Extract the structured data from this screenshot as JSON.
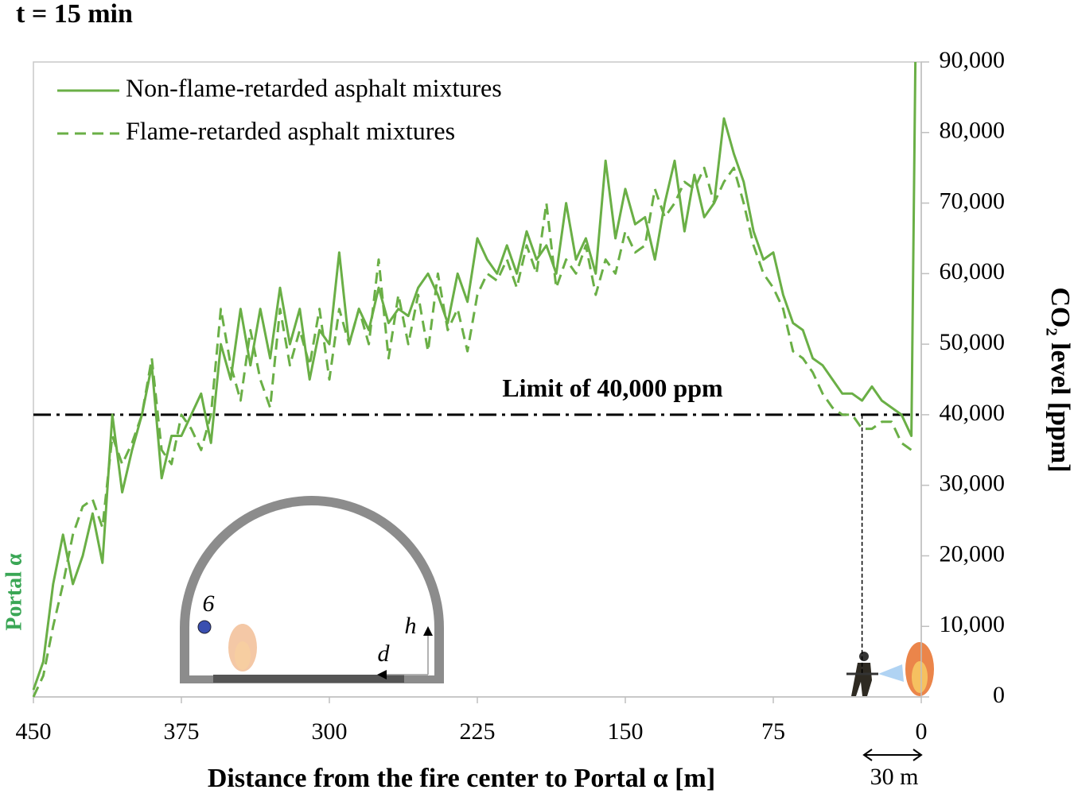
{
  "chart_data": {
    "type": "line",
    "title": "t = 15 min",
    "x_label": "Distance from the fire center to Portal α [m]",
    "y_label": "CO₂ level [ppm]",
    "xlim": [
      450,
      0
    ],
    "xticks": [
      450,
      375,
      300,
      225,
      150,
      75,
      0
    ],
    "ylim": [
      0,
      90000
    ],
    "yticks": [
      0,
      {
        "value": 10000,
        "label": "10,000"
      },
      {
        "value": 20000,
        "label": "20,000"
      },
      {
        "value": 30000,
        "label": "30,000"
      },
      {
        "value": 40000,
        "label": "40,000"
      },
      {
        "value": 50000,
        "label": "50,000"
      },
      {
        "value": 60000,
        "label": "60,000"
      },
      {
        "value": 70000,
        "label": "70,000"
      },
      {
        "value": 80000,
        "label": "80,000"
      },
      {
        "value": 90000,
        "label": "90,000"
      }
    ],
    "legend": "top-left",
    "x": [
      450,
      445,
      440,
      435,
      430,
      425,
      420,
      415,
      410,
      405,
      400,
      395,
      390,
      385,
      380,
      375,
      370,
      365,
      360,
      355,
      350,
      345,
      340,
      335,
      330,
      325,
      320,
      315,
      310,
      305,
      300,
      295,
      290,
      285,
      280,
      275,
      270,
      265,
      260,
      255,
      250,
      245,
      240,
      235,
      230,
      225,
      220,
      215,
      210,
      205,
      200,
      195,
      190,
      185,
      180,
      175,
      170,
      165,
      160,
      155,
      150,
      145,
      140,
      135,
      130,
      125,
      120,
      115,
      110,
      105,
      100,
      95,
      90,
      85,
      80,
      75,
      70,
      65,
      60,
      55,
      50,
      45,
      40,
      35,
      30,
      25,
      20,
      15,
      10,
      5,
      3
    ],
    "series": [
      {
        "name": "Non-flame-retarded asphalt mixtures",
        "color": "#6aaf46",
        "dash": "solid",
        "values": [
          1000,
          5000,
          16000,
          23000,
          16000,
          20000,
          26000,
          19000,
          40000,
          29000,
          35000,
          40000,
          47000,
          31000,
          37000,
          37000,
          40000,
          43000,
          36000,
          50000,
          45000,
          55000,
          47000,
          55000,
          48000,
          58000,
          50000,
          55000,
          45000,
          52000,
          50000,
          63000,
          50000,
          55000,
          52000,
          58000,
          53000,
          55000,
          54000,
          58000,
          60000,
          57000,
          53000,
          60000,
          56000,
          65000,
          62000,
          60000,
          64000,
          60000,
          66000,
          62000,
          64000,
          60000,
          70000,
          62000,
          65000,
          60000,
          76000,
          65000,
          72000,
          67000,
          68000,
          62000,
          70000,
          76000,
          66000,
          74000,
          68000,
          70000,
          82000,
          77000,
          73000,
          66000,
          62000,
          63000,
          57000,
          53000,
          52000,
          48000,
          47000,
          45000,
          43000,
          43000,
          42000,
          44000,
          42000,
          41000,
          40000,
          37000,
          90000
        ]
      },
      {
        "name": "Flame-retarded asphalt mixtures",
        "color": "#6aaf46",
        "dash": "dashed",
        "values": [
          0,
          3000,
          10000,
          16000,
          23000,
          27000,
          28000,
          24000,
          37000,
          33000,
          36000,
          40000,
          48000,
          35000,
          33000,
          40000,
          38000,
          35000,
          40000,
          55000,
          47000,
          42000,
          52000,
          45000,
          41000,
          55000,
          47000,
          52000,
          47000,
          55000,
          45000,
          55000,
          50000,
          55000,
          50000,
          62000,
          48000,
          57000,
          50000,
          57000,
          49000,
          60000,
          52000,
          55000,
          49000,
          57000,
          60000,
          59000,
          62000,
          58000,
          64000,
          60000,
          70000,
          58000,
          62000,
          60000,
          64000,
          57000,
          62000,
          60000,
          66000,
          63000,
          64000,
          72000,
          68000,
          70000,
          73000,
          72000,
          75000,
          70000,
          73000,
          75000,
          70000,
          64000,
          60000,
          58000,
          55000,
          49000,
          48000,
          46000,
          43000,
          41000,
          40000,
          40000,
          38000,
          38000,
          39000,
          39000,
          36000,
          35000,
          null
        ]
      }
    ],
    "reference_line": {
      "value": 40000,
      "label": "Limit of 40,000 ppm"
    },
    "marker_line_x": 30,
    "annotations": [
      "Portal α",
      "30 m",
      "6",
      "h",
      "d"
    ]
  }
}
